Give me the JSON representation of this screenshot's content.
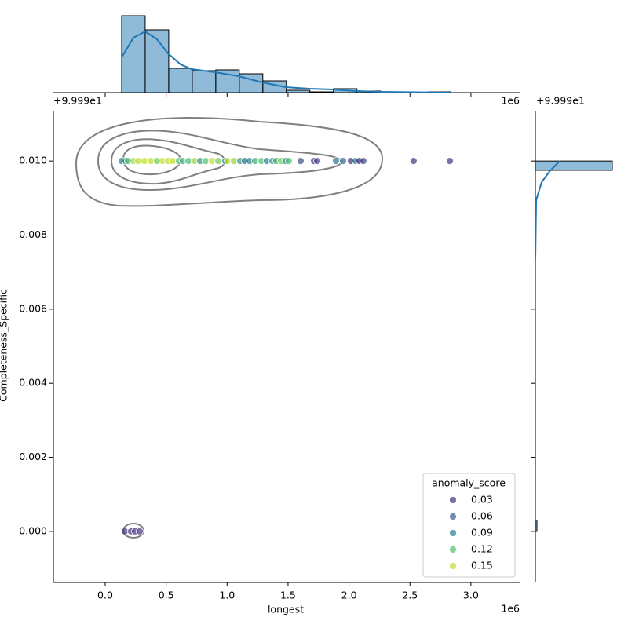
{
  "chart_data": {
    "type": "jointplot",
    "x_label": "longest",
    "y_label": "Completeness_Specific",
    "x_offset": "1e6",
    "y_offset": "+9.999e1",
    "xlim": [
      -0.425,
      3.4
    ],
    "ylim": [
      -0.00138,
      0.01136
    ],
    "xticks": [
      {
        "value": 0,
        "label": "0.0"
      },
      {
        "value": 0.5,
        "label": "0.5"
      },
      {
        "value": 1,
        "label": "1.0"
      },
      {
        "value": 1.5,
        "label": "1.5"
      },
      {
        "value": 2,
        "label": "2.0"
      },
      {
        "value": 2.5,
        "label": "2.5"
      },
      {
        "value": 3,
        "label": "3.0"
      }
    ],
    "yticks": [
      {
        "value": 0,
        "label": "0.000"
      },
      {
        "value": 0.002,
        "label": "0.002"
      },
      {
        "value": 0.004,
        "label": "0.004"
      },
      {
        "value": 0.006,
        "label": "0.006"
      },
      {
        "value": 0.008,
        "label": "0.008"
      },
      {
        "value": 0.01,
        "label": "0.010"
      }
    ],
    "points": {
      "x": [
        0.135,
        0.167,
        0.187,
        0.232,
        0.27,
        0.322,
        0.374,
        0.425,
        0.47,
        0.515,
        0.554,
        0.605,
        0.637,
        0.683,
        0.734,
        0.779,
        0.824,
        0.876,
        0.927,
        0.985,
        1.004,
        1.056,
        1.107,
        1.146,
        1.185,
        1.23,
        1.281,
        1.326,
        1.372,
        1.404,
        1.442,
        1.481,
        1.507,
        1.603,
        1.713,
        1.739,
        1.893,
        1.951,
        2.015,
        2.054,
        2.086,
        2.118,
        2.53,
        2.827,
        0.161,
        0.212,
        0.245,
        0.283
      ],
      "y": [
        0.01,
        0.01,
        0.01,
        0.01,
        0.01,
        0.01,
        0.01,
        0.01,
        0.01,
        0.01,
        0.01,
        0.01,
        0.01,
        0.01,
        0.01,
        0.01,
        0.01,
        0.01,
        0.01,
        0.01,
        0.01,
        0.01,
        0.01,
        0.01,
        0.01,
        0.01,
        0.01,
        0.01,
        0.01,
        0.01,
        0.01,
        0.01,
        0.01,
        0.01,
        0.01,
        0.01,
        0.01,
        0.01,
        0.01,
        0.01,
        0.01,
        0.01,
        0.01,
        0.01,
        0,
        0,
        0,
        0
      ],
      "hue": [
        0.08,
        0.1,
        0.12,
        0.14,
        0.15,
        0.16,
        0.16,
        0.13,
        0.16,
        0.15,
        0.16,
        0.12,
        0.11,
        0.12,
        0.14,
        0.1,
        0.12,
        0.15,
        0.13,
        0.09,
        0.16,
        0.14,
        0.1,
        0.07,
        0.09,
        0.11,
        0.12,
        0.09,
        0.1,
        0.11,
        0.13,
        0.09,
        0.12,
        0.05,
        0.02,
        0.04,
        0.08,
        0.07,
        0.03,
        0.08,
        0.02,
        0.04,
        0.03,
        0.02,
        0.02,
        0.03,
        0.02,
        0.03
      ]
    },
    "legend": {
      "title": "anomaly_score",
      "corner": "lower right",
      "entries": [
        0.03,
        0.06,
        0.09,
        0.12,
        0.15
      ],
      "colors": [
        "#46337e",
        "#365c8d",
        "#277f8e",
        "#4ac16d",
        "#bddf26"
      ]
    },
    "top_hist": {
      "color": "#1f77b4",
      "ylim": [
        0,
        100
      ],
      "bins": [
        0.135,
        0.328,
        0.521,
        0.714,
        0.907,
        1.1,
        1.293,
        1.486,
        1.679,
        1.872,
        2.065,
        2.258,
        2.451,
        2.644,
        2.837
      ],
      "counts": [
        98,
        80,
        31,
        28,
        29,
        24,
        15,
        3,
        1,
        5,
        2,
        1,
        0,
        1
      ],
      "kde_x": [
        0.135,
        0.232,
        0.328,
        0.425,
        0.515,
        0.618,
        0.708,
        0.901,
        1.095,
        1.288,
        1.481,
        1.674,
        1.867,
        2.06,
        2.253,
        2.833
      ],
      "kde_y": [
        45,
        70,
        78,
        68,
        50,
        36,
        30,
        26,
        21,
        13,
        7,
        5,
        4,
        2,
        1,
        0
      ]
    },
    "right_hist": {
      "color": "#1f77b4",
      "xlim": [
        0,
        100
      ],
      "bins": [
        0,
        0.0003,
        0.00975,
        0.01
      ],
      "counts": [
        2,
        0,
        98
      ],
      "kde_y": [
        0.00735,
        0.00894,
        0.00943,
        0.00972,
        0.01
      ],
      "kde_x": [
        0,
        1,
        8,
        18,
        31
      ]
    }
  }
}
